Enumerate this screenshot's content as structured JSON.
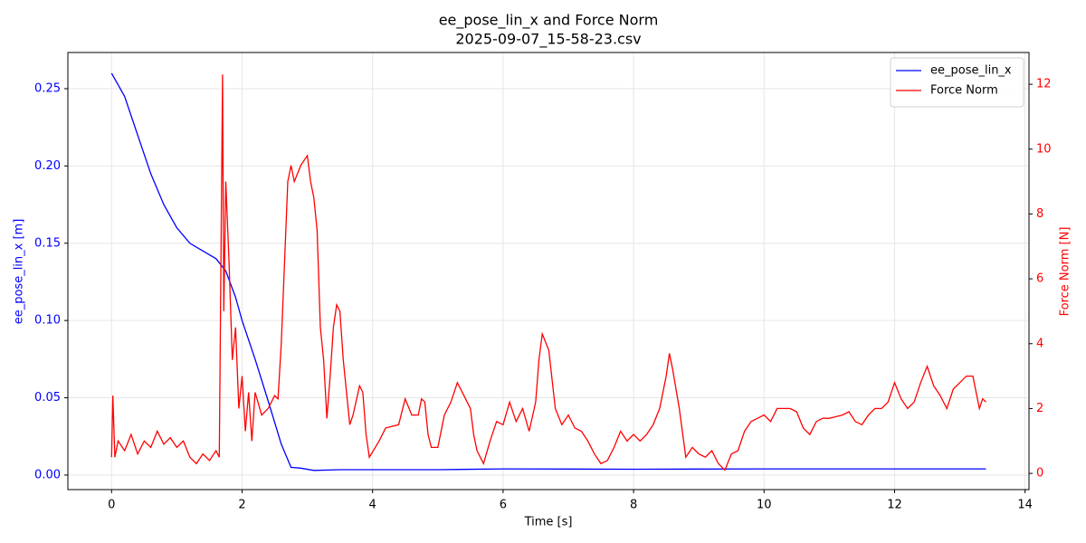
{
  "chart_data": {
    "type": "line",
    "title": "ee_pose_lin_x and Force Norm",
    "subtitle": "2025-09-07_15-58-23.csv",
    "x_label": "Time [s]",
    "y_label": "ee_pose_lin_x [m]",
    "y2_label": "Force Norm [N]",
    "xlim": [
      -0.67,
      14.06
    ],
    "xticks": [
      0,
      2,
      4,
      6,
      8,
      10,
      12,
      14
    ],
    "ylim": [
      -0.0094,
      0.2734
    ],
    "yticks": [
      {
        "value": 0,
        "label": "0.00"
      },
      {
        "value": 0.05,
        "label": "0.05"
      },
      {
        "value": 0.1,
        "label": "0.10"
      },
      {
        "value": 0.15,
        "label": "0.15"
      },
      {
        "value": 0.2,
        "label": "0.20"
      },
      {
        "value": 0.25,
        "label": "0.25"
      }
    ],
    "y2lim": [
      -0.5,
      12.98
    ],
    "y2ticks": [
      0,
      2,
      4,
      6,
      8,
      10,
      12
    ],
    "grid": true,
    "legend": "upper right",
    "series": [
      {
        "name": "ee_pose_lin_x",
        "color": "#0000ff",
        "axis": "y",
        "x": [
          0,
          0.2,
          0.4,
          0.6,
          0.8,
          1.0,
          1.2,
          1.4,
          1.6,
          1.75,
          1.9,
          2.0,
          2.2,
          2.4,
          2.6,
          2.75,
          2.9,
          3.1,
          3.5,
          5,
          6,
          8,
          10,
          13.4
        ],
        "values": [
          0.26,
          0.245,
          0.22,
          0.195,
          0.175,
          0.16,
          0.15,
          0.145,
          0.14,
          0.132,
          0.115,
          0.1,
          0.075,
          0.048,
          0.02,
          0.005,
          0.0045,
          0.003,
          0.0035,
          0.0035,
          0.004,
          0.0038,
          0.004,
          0.004
        ]
      },
      {
        "name": "Force Norm",
        "color": "#ff0000",
        "axis": "y2",
        "x": [
          0,
          0.02,
          0.05,
          0.1,
          0.2,
          0.3,
          0.4,
          0.5,
          0.6,
          0.7,
          0.8,
          0.9,
          1.0,
          1.1,
          1.2,
          1.3,
          1.4,
          1.5,
          1.6,
          1.65,
          1.7,
          1.72,
          1.75,
          1.8,
          1.85,
          1.9,
          1.95,
          2.0,
          2.05,
          2.1,
          2.15,
          2.2,
          2.3,
          2.4,
          2.5,
          2.55,
          2.6,
          2.65,
          2.7,
          2.75,
          2.8,
          2.9,
          3.0,
          3.05,
          3.1,
          3.15,
          3.2,
          3.25,
          3.3,
          3.35,
          3.4,
          3.45,
          3.5,
          3.55,
          3.6,
          3.65,
          3.7,
          3.8,
          3.85,
          3.9,
          3.95,
          4.1,
          4.2,
          4.4,
          4.5,
          4.6,
          4.7,
          4.75,
          4.8,
          4.85,
          4.9,
          5.0,
          5.1,
          5.2,
          5.3,
          5.4,
          5.5,
          5.55,
          5.6,
          5.7,
          5.8,
          5.9,
          6.0,
          6.1,
          6.2,
          6.3,
          6.4,
          6.5,
          6.55,
          6.6,
          6.7,
          6.8,
          6.9,
          7.0,
          7.1,
          7.2,
          7.3,
          7.4,
          7.5,
          7.6,
          7.7,
          7.8,
          7.9,
          8.0,
          8.1,
          8.2,
          8.3,
          8.4,
          8.5,
          8.55,
          8.6,
          8.7,
          8.8,
          8.9,
          9.0,
          9.1,
          9.2,
          9.3,
          9.4,
          9.5,
          9.6,
          9.7,
          9.8,
          9.9,
          10.0,
          10.1,
          10.2,
          10.3,
          10.4,
          10.5,
          10.6,
          10.7,
          10.8,
          10.9,
          11.0,
          11.2,
          11.3,
          11.4,
          11.5,
          11.6,
          11.7,
          11.8,
          11.9,
          12.0,
          12.1,
          12.2,
          12.3,
          12.4,
          12.5,
          12.6,
          12.7,
          12.8,
          12.9,
          13.0,
          13.1,
          13.2,
          13.3,
          13.35,
          13.4
        ],
        "values": [
          0.5,
          2.4,
          0.5,
          1.0,
          0.7,
          1.2,
          0.6,
          1.0,
          0.8,
          1.3,
          0.9,
          1.1,
          0.8,
          1.0,
          0.5,
          0.3,
          0.6,
          0.4,
          0.7,
          0.5,
          12.3,
          5.0,
          9.0,
          6.5,
          3.5,
          4.5,
          2.0,
          3.0,
          1.3,
          2.5,
          1.0,
          2.5,
          1.8,
          2.0,
          2.4,
          2.3,
          4.0,
          6.5,
          9.0,
          9.5,
          9.0,
          9.5,
          9.8,
          9.0,
          8.5,
          7.5,
          4.5,
          3.5,
          1.7,
          3.0,
          4.5,
          5.2,
          5.0,
          3.5,
          2.5,
          1.5,
          1.8,
          2.7,
          2.5,
          1.2,
          0.5,
          1.0,
          1.4,
          1.5,
          2.3,
          1.8,
          1.8,
          2.3,
          2.2,
          1.2,
          0.8,
          0.8,
          1.8,
          2.2,
          2.8,
          2.4,
          2.0,
          1.2,
          0.7,
          0.3,
          1.0,
          1.6,
          1.5,
          2.2,
          1.6,
          2.0,
          1.3,
          2.2,
          3.5,
          4.3,
          3.8,
          2.0,
          1.5,
          1.8,
          1.4,
          1.3,
          1.0,
          0.6,
          0.3,
          0.4,
          0.8,
          1.3,
          1.0,
          1.2,
          1.0,
          1.2,
          1.5,
          2.0,
          3.0,
          3.7,
          3.2,
          2.0,
          0.5,
          0.8,
          0.6,
          0.5,
          0.7,
          0.3,
          0.1,
          0.6,
          0.7,
          1.3,
          1.6,
          1.7,
          1.8,
          1.6,
          2.0,
          2.0,
          2.0,
          1.9,
          1.4,
          1.2,
          1.6,
          1.7,
          1.7,
          1.8,
          1.9,
          1.6,
          1.5,
          1.8,
          2.0,
          2.0,
          2.2,
          2.8,
          2.3,
          2.0,
          2.2,
          2.8,
          3.3,
          2.7,
          2.4,
          2.0,
          2.6,
          2.8,
          3.0,
          3.0,
          2.0,
          2.3,
          2.2
        ]
      }
    ]
  }
}
